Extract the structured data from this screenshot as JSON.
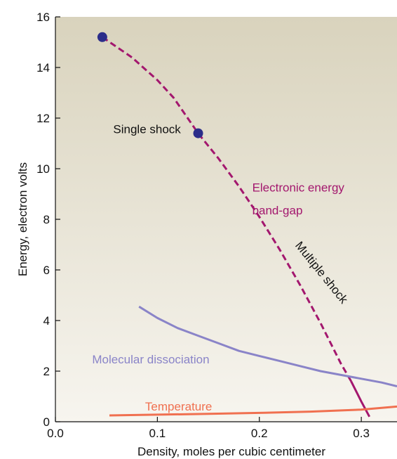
{
  "chart_data": {
    "type": "line",
    "title": "",
    "xlabel": "Density, moles per cubic centimeter",
    "ylabel": "Energy, electron volts",
    "xlim": [
      0.0,
      0.335
    ],
    "ylim": [
      0,
      16
    ],
    "xticks": [
      0.0,
      0.1,
      0.2,
      0.3
    ],
    "xtick_labels": [
      "0.0",
      "0.1",
      "0.2",
      "0.3"
    ],
    "yticks": [
      0,
      2,
      4,
      6,
      8,
      10,
      12,
      14,
      16
    ],
    "ytick_labels": [
      "0",
      "2",
      "4",
      "6",
      "8",
      "10",
      "12",
      "14",
      "16"
    ],
    "grid": false,
    "background": {
      "top": "#d9d3bd",
      "bottom": "#f7f5ef"
    },
    "series": [
      {
        "name": "Electronic energy band-gap",
        "color": "#a3176e",
        "style": "dashed",
        "x": [
          0.046,
          0.075,
          0.1,
          0.116,
          0.14,
          0.16,
          0.18,
          0.2,
          0.22,
          0.24,
          0.26,
          0.28,
          0.29
        ],
        "y": [
          15.2,
          14.4,
          13.5,
          12.8,
          11.4,
          10.4,
          9.3,
          8.1,
          6.8,
          5.4,
          3.9,
          2.3,
          1.6
        ]
      },
      {
        "name": "Multiple shock",
        "color": "#a3176e",
        "style": "solid",
        "x": [
          0.29,
          0.3,
          0.308
        ],
        "y": [
          1.6,
          0.8,
          0.2
        ]
      },
      {
        "name": "Molecular dissociation",
        "color": "#8a84c8",
        "style": "solid",
        "x": [
          0.082,
          0.1,
          0.12,
          0.14,
          0.16,
          0.18,
          0.2,
          0.22,
          0.24,
          0.26,
          0.28,
          0.3,
          0.32,
          0.335
        ],
        "y": [
          4.55,
          4.1,
          3.7,
          3.4,
          3.1,
          2.8,
          2.6,
          2.4,
          2.2,
          2.0,
          1.85,
          1.7,
          1.55,
          1.4
        ]
      },
      {
        "name": "Temperature",
        "color": "#f07050",
        "style": "solid",
        "x": [
          0.053,
          0.1,
          0.15,
          0.2,
          0.25,
          0.3,
          0.335
        ],
        "y": [
          0.25,
          0.28,
          0.31,
          0.35,
          0.4,
          0.48,
          0.6
        ]
      }
    ],
    "markers": [
      {
        "x": 0.046,
        "y": 15.2,
        "color": "#2b2d8a"
      },
      {
        "x": 0.14,
        "y": 11.4,
        "color": "#2b2d8a"
      }
    ],
    "annotations": [
      {
        "text": "Single shock",
        "x": 0.123,
        "y": 11.4,
        "color": "#111111",
        "anchor": "end",
        "rotate": 0
      },
      {
        "text": "Electronic energy",
        "x": 0.193,
        "y": 9.1,
        "color": "#a3176e",
        "anchor": "start",
        "rotate": 0
      },
      {
        "text": "band-gap",
        "x": 0.193,
        "y": 8.2,
        "color": "#a3176e",
        "anchor": "start",
        "rotate": 0
      },
      {
        "text": "Multiple shock",
        "x": 0.258,
        "y": 5.8,
        "color": "#111111",
        "anchor": "middle",
        "rotate": 51
      },
      {
        "text": "Molecular dissociation",
        "x": 0.036,
        "y": 2.3,
        "color": "#8a84c8",
        "anchor": "start",
        "rotate": 0
      },
      {
        "text": "Temperature",
        "x": 0.088,
        "y": 0.45,
        "color": "#f07050",
        "anchor": "start",
        "rotate": 0
      }
    ]
  }
}
